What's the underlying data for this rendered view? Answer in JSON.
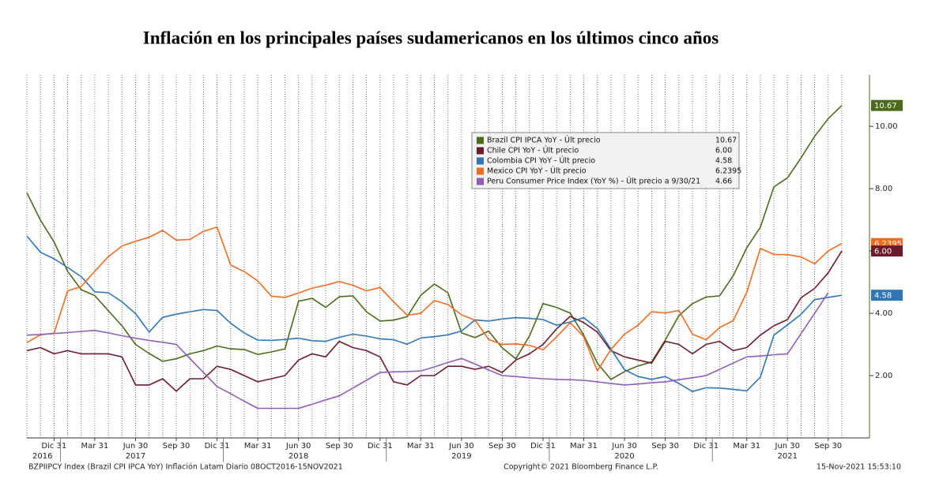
{
  "chart_data": {
    "type": "line",
    "title": "Inflación en los principales países sudamericanos en los últimos cinco años",
    "categories": [
      null,
      null,
      "Dic 31",
      null,
      null,
      "Mar 31",
      null,
      null,
      "Jun 30",
      null,
      null,
      "Sep 30",
      null,
      null,
      "Dic 31",
      null,
      null,
      "Mar 31",
      null,
      null,
      "Jun 30",
      null,
      null,
      "Sep 30",
      null,
      null,
      "Dic 31",
      null,
      null,
      "Mar 31",
      null,
      null,
      "Jun 30",
      null,
      null,
      "Sep 30",
      null,
      null,
      "Dic 31",
      null,
      null,
      "Mar 31",
      null,
      null,
      "Jun 30",
      null,
      null,
      "Sep 30",
      null,
      null,
      "Dic 31",
      null,
      null,
      "Mar 31",
      null,
      null,
      "Jun 30",
      null,
      null,
      "Sep 30",
      null
    ],
    "years": [
      "2016",
      "2017",
      "2018",
      "2019",
      "2020",
      "2021"
    ],
    "ylim": [
      0,
      11.65
    ],
    "yticks": [
      {
        "value": 2,
        "label": "2.00"
      },
      {
        "value": 4,
        "label": "4.00"
      },
      {
        "value": 6,
        "label": "6.00"
      },
      {
        "value": 8,
        "label": "8.00"
      },
      {
        "value": 10,
        "label": "10.00"
      }
    ],
    "series": [
      {
        "name": "Brazil CPI IPCA YoY - Últ precio",
        "color": "#4b6a1c",
        "last_label": "10.67",
        "axis_tag": true,
        "values": [
          7.87,
          6.99,
          6.29,
          5.35,
          4.76,
          4.57,
          4.08,
          3.6,
          3.0,
          2.71,
          2.46,
          2.54,
          2.7,
          2.8,
          2.95,
          2.86,
          2.84,
          2.68,
          2.76,
          2.86,
          4.39,
          4.48,
          4.19,
          4.53,
          4.56,
          4.05,
          3.75,
          3.78,
          3.89,
          4.58,
          4.94,
          4.66,
          3.37,
          3.22,
          3.43,
          2.89,
          2.54,
          3.27,
          4.31,
          4.19,
          4.01,
          3.3,
          2.4,
          1.88,
          2.13,
          2.31,
          2.44,
          3.14,
          3.92,
          4.31,
          4.52,
          4.56,
          5.2,
          6.1,
          6.76,
          8.06,
          8.35,
          8.99,
          9.68,
          10.25,
          10.67
        ]
      },
      {
        "name": "Chile CPI YoY - Últ precio",
        "color": "#6e1a2b",
        "last_label": "6.00",
        "axis_tag": true,
        "values": [
          2.8,
          2.9,
          2.7,
          2.8,
          2.7,
          2.7,
          2.7,
          2.6,
          1.7,
          1.7,
          1.9,
          1.5,
          1.9,
          1.9,
          2.3,
          2.2,
          2.0,
          1.8,
          1.9,
          2.0,
          2.5,
          2.7,
          2.6,
          3.1,
          2.9,
          2.8,
          2.6,
          1.8,
          1.7,
          2.0,
          2.0,
          2.3,
          2.3,
          2.2,
          2.3,
          2.1,
          2.5,
          2.7,
          3.0,
          3.5,
          3.9,
          3.7,
          3.4,
          2.8,
          2.6,
          2.5,
          2.4,
          3.1,
          3.0,
          2.7,
          3.0,
          3.1,
          2.8,
          2.9,
          3.3,
          3.6,
          3.8,
          4.5,
          4.8,
          5.3,
          6.0
        ]
      },
      {
        "name": "Colombia CPI YoY - Últ precio",
        "color": "#2f76b6",
        "last_label": "4.58",
        "axis_tag": true,
        "values": [
          6.48,
          5.96,
          5.75,
          5.47,
          5.18,
          4.69,
          4.66,
          4.37,
          3.99,
          3.4,
          3.87,
          3.97,
          4.05,
          4.12,
          4.09,
          3.68,
          3.37,
          3.14,
          3.13,
          3.16,
          3.2,
          3.12,
          3.1,
          3.23,
          3.33,
          3.27,
          3.18,
          3.15,
          3.01,
          3.21,
          3.25,
          3.31,
          3.43,
          3.79,
          3.75,
          3.82,
          3.86,
          3.84,
          3.8,
          3.62,
          3.72,
          3.86,
          3.51,
          2.85,
          2.19,
          1.97,
          1.88,
          1.97,
          1.75,
          1.49,
          1.61,
          1.6,
          1.56,
          1.51,
          1.95,
          3.3,
          3.63,
          3.97,
          4.44,
          4.51,
          4.58
        ]
      },
      {
        "name": "Mexico CPI YoY - Últ precio",
        "color": "#f26b22",
        "last_label": "6.2395",
        "axis_tag": true,
        "values": [
          3.06,
          3.31,
          3.36,
          4.72,
          4.86,
          5.35,
          5.82,
          6.16,
          6.31,
          6.44,
          6.66,
          6.35,
          6.37,
          6.63,
          6.77,
          5.55,
          5.34,
          5.04,
          4.55,
          4.51,
          4.65,
          4.81,
          4.9,
          5.02,
          4.9,
          4.72,
          4.83,
          4.37,
          3.94,
          4.0,
          4.41,
          4.28,
          3.95,
          3.78,
          3.16,
          3.0,
          3.02,
          2.97,
          2.83,
          3.24,
          3.7,
          3.25,
          2.15,
          2.84,
          3.33,
          3.62,
          4.05,
          4.01,
          4.09,
          3.33,
          3.15,
          3.54,
          3.76,
          4.67,
          6.08,
          5.89,
          5.88,
          5.81,
          5.59,
          6.0,
          6.2395
        ]
      },
      {
        "name": "Peru Consumer Price Index (YoY %) - Últ precio a 9/30/21",
        "color": "#8f5db7",
        "last_label": "4.66",
        "axis_tag": false,
        "values": [
          3.3,
          3.32,
          3.35,
          3.38,
          3.42,
          3.45,
          3.37,
          3.28,
          3.2,
          3.13,
          3.07,
          3.0,
          2.55,
          2.1,
          1.65,
          1.42,
          1.18,
          0.95,
          0.95,
          0.95,
          0.95,
          1.08,
          1.22,
          1.35,
          1.6,
          1.85,
          2.1,
          2.12,
          2.13,
          2.15,
          2.28,
          2.42,
          2.55,
          2.37,
          2.18,
          2.0,
          1.97,
          1.93,
          1.9,
          1.88,
          1.87,
          1.85,
          1.8,
          1.75,
          1.7,
          1.73,
          1.77,
          1.8,
          1.87,
          1.93,
          2.0,
          2.2,
          2.4,
          2.6,
          2.63,
          2.67,
          2.7,
          3.35,
          4.0,
          4.66,
          null
        ]
      }
    ],
    "footer": {
      "left": "BZPIIPCY Index (Brazil CPI IPCA YoY) Inflación Latam  Diario 08OCT2016-15NOV2021",
      "center": "Copyright© 2021 Bloomberg Finance L.P.",
      "right": "15-Nov-2021 15:53:10"
    }
  }
}
